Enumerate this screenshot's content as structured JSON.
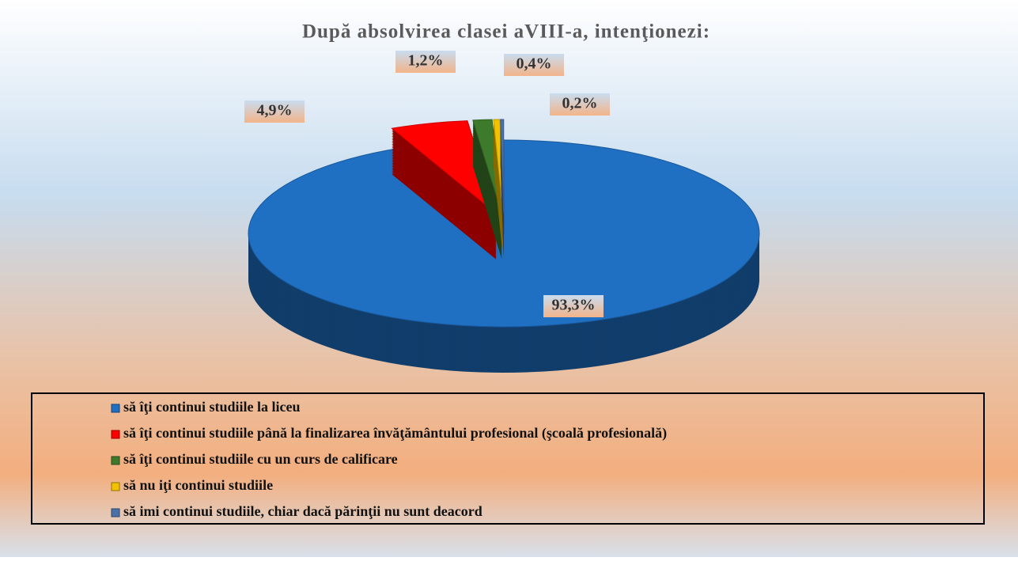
{
  "chart_data": {
    "type": "pie",
    "title": "După absolvirea clasei aVIII-a, intenţionezi:",
    "categories": [
      "să îţi continui studiile la liceu",
      "să îţi continui studiile până la finalizarea învăţământului profesional (şcoală profesională)",
      "să îţi continui studiile cu un curs de calificare",
      "să nu iţi continui studiile",
      "să imi continui studiile, chiar dacă părinţii nu sunt deacord"
    ],
    "values": [
      93.3,
      4.9,
      1.2,
      0.4,
      0.2
    ],
    "value_labels": [
      "93,3%",
      "4,9%",
      "1,2%",
      "0,4%",
      "0,2%"
    ],
    "colors": [
      "#1f6fc2",
      "#ff0000",
      "#3e7a2c",
      "#f2c200",
      "#4a72a8"
    ],
    "legend": "bottom"
  }
}
